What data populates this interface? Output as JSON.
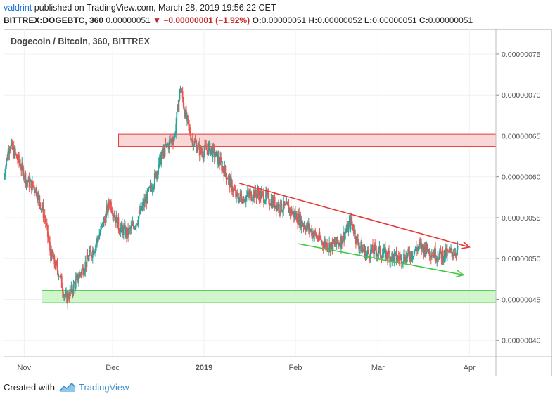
{
  "header": {
    "username": "valdrint",
    "published_text": " published on TradingView.com, March 28, 2019 19:56:22 CET",
    "symbol": "BITTREX:DOGEBTC, 360",
    "last": "0.00000051",
    "change": "▼ −0.00000001 (−1.92%)",
    "o_label": "O:",
    "o_val": "0.00000051",
    "h_label": "H:",
    "h_val": "0.00000052",
    "l_label": "L:",
    "l_val": "0.00000051",
    "c_label": "C:",
    "c_val": "0.00000051"
  },
  "footer": {
    "created_with": "Created with",
    "brand": "TradingView",
    "logo_icon": "tradingview-logo-icon"
  },
  "colors": {
    "up": "#26a69a",
    "down": "#ef5350",
    "resistance_fill": "#f8d0d0",
    "resistance_line": "#e53935",
    "support_fill": "#c9f5c2",
    "support_line": "#43c743",
    "grid": "#eef1f4",
    "axis": "#555555"
  },
  "chart_data": {
    "type": "candlestick",
    "title": "Dogecoin / Bitcoin, 360, BITTREX",
    "x_ticks": [
      "Nov",
      "Dec",
      "2019",
      "Feb",
      "Mar",
      "Apr"
    ],
    "x_tick_dates": [
      "2018-11-01",
      "2018-12-01",
      "2019-01-01",
      "2019-02-01",
      "2019-03-01",
      "2019-04-01"
    ],
    "xlim": [
      "2018-10-25",
      "2019-04-10"
    ],
    "y_ticks": [
      "0.00000075",
      "0.00000070",
      "0.00000065",
      "0.00000060",
      "0.00000055",
      "0.00000050",
      "0.00000045",
      "0.00000040"
    ],
    "y_tick_values": [
      7.5e-07,
      7e-07,
      6.5e-07,
      6e-07,
      5.5e-07,
      5e-07,
      4.5e-07,
      4e-07
    ],
    "ylim": [
      3.8e-07,
      7.8e-07
    ],
    "grid": true,
    "price_path": [
      [
        "2018-10-25",
        6e-07
      ],
      [
        "2018-10-27",
        6.4e-07
      ],
      [
        "2018-10-30",
        6.2e-07
      ],
      [
        "2018-11-02",
        5.95e-07
      ],
      [
        "2018-11-05",
        5.85e-07
      ],
      [
        "2018-11-08",
        5.5e-07
      ],
      [
        "2018-11-10",
        5.05e-07
      ],
      [
        "2018-11-13",
        4.8e-07
      ],
      [
        "2018-11-15",
        4.5e-07
      ],
      [
        "2018-11-17",
        4.6e-07
      ],
      [
        "2018-11-19",
        4.75e-07
      ],
      [
        "2018-11-22",
        4.95e-07
      ],
      [
        "2018-11-25",
        5.15e-07
      ],
      [
        "2018-11-28",
        5.45e-07
      ],
      [
        "2018-11-30",
        5.7e-07
      ],
      [
        "2018-12-03",
        5.4e-07
      ],
      [
        "2018-12-06",
        5.3e-07
      ],
      [
        "2018-12-09",
        5.45e-07
      ],
      [
        "2018-12-12",
        5.7e-07
      ],
      [
        "2018-12-15",
        5.95e-07
      ],
      [
        "2018-12-17",
        6.2e-07
      ],
      [
        "2018-12-19",
        6.35e-07
      ],
      [
        "2018-12-22",
        6.5e-07
      ],
      [
        "2018-12-24",
        7.1e-07
      ],
      [
        "2018-12-26",
        6.7e-07
      ],
      [
        "2018-12-28",
        6.45e-07
      ],
      [
        "2018-12-31",
        6.3e-07
      ],
      [
        "2019-01-03",
        6.35e-07
      ],
      [
        "2019-01-06",
        6.2e-07
      ],
      [
        "2019-01-09",
        6e-07
      ],
      [
        "2019-01-12",
        5.75e-07
      ],
      [
        "2019-01-15",
        5.75e-07
      ],
      [
        "2019-01-18",
        5.8e-07
      ],
      [
        "2019-01-22",
        5.75e-07
      ],
      [
        "2019-01-26",
        5.65e-07
      ],
      [
        "2019-01-30",
        5.6e-07
      ],
      [
        "2019-02-03",
        5.45e-07
      ],
      [
        "2019-02-06",
        5.35e-07
      ],
      [
        "2019-02-10",
        5.2e-07
      ],
      [
        "2019-02-13",
        5.15e-07
      ],
      [
        "2019-02-16",
        5.2e-07
      ],
      [
        "2019-02-20",
        5.45e-07
      ],
      [
        "2019-02-22",
        5.2e-07
      ],
      [
        "2019-02-25",
        5.05e-07
      ],
      [
        "2019-02-28",
        5.1e-07
      ],
      [
        "2019-03-04",
        5.05e-07
      ],
      [
        "2019-03-08",
        5e-07
      ],
      [
        "2019-03-12",
        5.05e-07
      ],
      [
        "2019-03-15",
        5.15e-07
      ],
      [
        "2019-03-18",
        5.1e-07
      ],
      [
        "2019-03-21",
        5.05e-07
      ],
      [
        "2019-03-24",
        5.05e-07
      ],
      [
        "2019-03-28",
        5.1e-07
      ]
    ],
    "annotations": [
      {
        "kind": "zone",
        "name": "resistance",
        "from": "2018-12-03",
        "to": "2019-04-10",
        "y_low": 6.37e-07,
        "y_high": 6.52e-07,
        "color": "#e53935"
      },
      {
        "kind": "zone",
        "name": "support",
        "from": "2018-11-07",
        "to": "2019-04-10",
        "y_low": 4.46e-07,
        "y_high": 4.61e-07,
        "color": "#43c743"
      },
      {
        "kind": "arrow",
        "name": "resistance-trend",
        "from": [
          "2019-01-13",
          5.92e-07
        ],
        "to": [
          "2019-04-01",
          5.14e-07
        ],
        "color": "#e53935"
      },
      {
        "kind": "arrow",
        "name": "support-trend",
        "from": [
          "2019-02-02",
          5.18e-07
        ],
        "to": [
          "2019-03-30",
          4.8e-07
        ],
        "color": "#43c743"
      }
    ]
  }
}
